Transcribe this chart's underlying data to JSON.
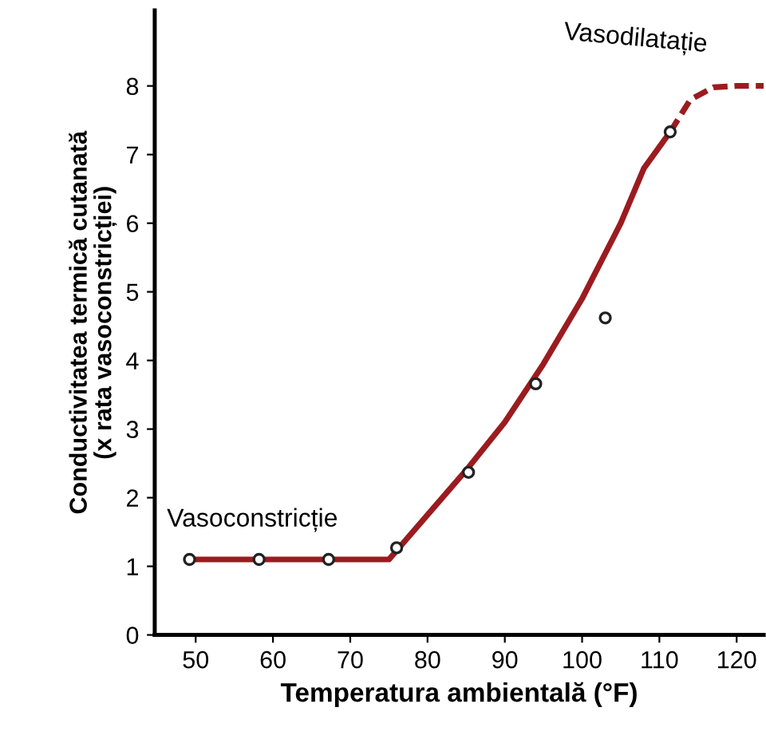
{
  "chart_data": {
    "type": "line",
    "xlabel": "Temperatura ambientală (°F)",
    "ylabel": "Conductivitatea termică cutanată\n(x rata vasoconstricției)",
    "xlim": [
      44.7,
      123.5
    ],
    "ylim": [
      0,
      9.1
    ],
    "xticks": [
      50,
      60,
      70,
      80,
      90,
      100,
      110,
      120
    ],
    "yticks": [
      0,
      1,
      2,
      3,
      4,
      5,
      6,
      7,
      8
    ],
    "grid": false,
    "legend": false,
    "series": [
      {
        "color": "#9b1b1f",
        "line_style": "solid",
        "marker": "none",
        "x": [
          49.2,
          75,
          80,
          85,
          90,
          95,
          100,
          105,
          108,
          111.4
        ],
        "values": [
          1.1,
          1.1,
          1.75,
          2.4,
          3.1,
          3.95,
          4.9,
          6.0,
          6.8,
          7.33
        ]
      },
      {
        "color": "#9b1b1f",
        "line_style": "dashed",
        "marker": "none",
        "x": [
          111.4,
          114,
          117,
          120,
          123.5
        ],
        "values": [
          7.33,
          7.8,
          7.98,
          8.0,
          8.0
        ]
      },
      {
        "type": "scatter",
        "color": "#222222",
        "marker": "circle",
        "x": [
          49.2,
          58.2,
          67.2,
          76.0,
          85.3,
          94.0,
          103.0,
          111.4
        ],
        "values": [
          1.1,
          1.1,
          1.1,
          1.27,
          2.37,
          3.66,
          4.62,
          7.33
        ]
      }
    ],
    "annotations": [
      "Vasoconstricție",
      "Vasodilatație"
    ]
  }
}
